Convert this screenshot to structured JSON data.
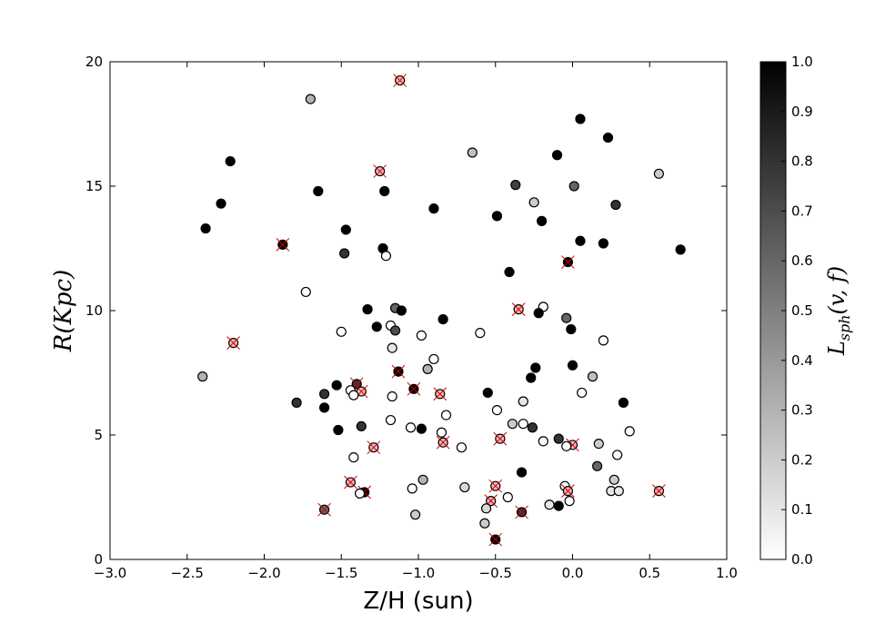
{
  "chart_data": {
    "type": "scatter",
    "xlabel": "Z/H (sun)",
    "ylabel": "R(Kpc)",
    "colorbar_label": "L_sph(v, f)",
    "xlim": [
      -3.0,
      1.0
    ],
    "ylim": [
      0,
      20
    ],
    "clim": [
      0.0,
      1.0
    ],
    "xticks": [
      "−3.0",
      "−2.5",
      "−2.0",
      "−1.5",
      "−1.0",
      "−0.5",
      "0.0",
      "0.5",
      "1.0"
    ],
    "xtick_values": [
      -3.0,
      -2.5,
      -2.0,
      -1.5,
      -1.0,
      -0.5,
      0.0,
      0.5,
      1.0
    ],
    "yticks": [
      "0",
      "5",
      "10",
      "15",
      "20"
    ],
    "ytick_values": [
      0,
      5,
      10,
      15,
      20
    ],
    "cbar_ticks": [
      "0.0",
      "0.1",
      "0.2",
      "0.3",
      "0.4",
      "0.5",
      "0.6",
      "0.7",
      "0.8",
      "0.9",
      "1.0"
    ],
    "cbar_tick_values": [
      0.0,
      0.1,
      0.2,
      0.3,
      0.4,
      0.5,
      0.6,
      0.7,
      0.8,
      0.9,
      1.0
    ],
    "colormap": "white-to-black",
    "marker_edge_color": "#000000",
    "cross_color": "#cc0000",
    "cross_fill_color": "#f2b8b8",
    "grid": false,
    "points": [
      {
        "x": -1.12,
        "y": 19.25,
        "c": 0.0,
        "crossed": true
      },
      {
        "x": -1.7,
        "y": 18.5,
        "c": 0.3
      },
      {
        "x": 0.05,
        "y": 17.7,
        "c": 1.0
      },
      {
        "x": 0.23,
        "y": 16.95,
        "c": 1.0
      },
      {
        "x": -0.65,
        "y": 16.35,
        "c": 0.25
      },
      {
        "x": -0.1,
        "y": 16.25,
        "c": 1.0
      },
      {
        "x": -2.22,
        "y": 16.0,
        "c": 1.0
      },
      {
        "x": -1.25,
        "y": 15.6,
        "c": 0.0,
        "crossed": true
      },
      {
        "x": 0.56,
        "y": 15.5,
        "c": 0.2
      },
      {
        "x": -0.37,
        "y": 15.05,
        "c": 0.75
      },
      {
        "x": 0.01,
        "y": 15.0,
        "c": 0.6
      },
      {
        "x": -1.65,
        "y": 14.8,
        "c": 1.0
      },
      {
        "x": -1.22,
        "y": 14.8,
        "c": 1.0
      },
      {
        "x": -0.25,
        "y": 14.35,
        "c": 0.2
      },
      {
        "x": -2.28,
        "y": 14.3,
        "c": 1.0
      },
      {
        "x": 0.28,
        "y": 14.25,
        "c": 0.8
      },
      {
        "x": -0.9,
        "y": 14.1,
        "c": 1.0
      },
      {
        "x": -0.49,
        "y": 13.8,
        "c": 1.0
      },
      {
        "x": -0.2,
        "y": 13.6,
        "c": 1.0
      },
      {
        "x": -2.38,
        "y": 13.3,
        "c": 1.0
      },
      {
        "x": -1.47,
        "y": 13.25,
        "c": 1.0
      },
      {
        "x": 0.05,
        "y": 12.8,
        "c": 1.0
      },
      {
        "x": 0.2,
        "y": 12.7,
        "c": 1.0
      },
      {
        "x": -1.88,
        "y": 12.65,
        "c": 1.0,
        "crossed": true
      },
      {
        "x": -1.23,
        "y": 12.5,
        "c": 1.0
      },
      {
        "x": 0.7,
        "y": 12.45,
        "c": 1.0
      },
      {
        "x": -1.48,
        "y": 12.3,
        "c": 0.8
      },
      {
        "x": -1.21,
        "y": 12.2,
        "c": 0.0
      },
      {
        "x": -0.03,
        "y": 11.95,
        "c": 1.0,
        "crossed": true
      },
      {
        "x": -0.41,
        "y": 11.55,
        "c": 1.0
      },
      {
        "x": -1.73,
        "y": 10.75,
        "c": 0.0
      },
      {
        "x": -0.19,
        "y": 10.15,
        "c": 0.0
      },
      {
        "x": -0.35,
        "y": 10.05,
        "c": 0.25,
        "crossed": true
      },
      {
        "x": -1.33,
        "y": 10.05,
        "c": 1.0
      },
      {
        "x": -1.15,
        "y": 10.1,
        "c": 0.6
      },
      {
        "x": -1.11,
        "y": 10.0,
        "c": 1.0
      },
      {
        "x": -0.22,
        "y": 9.9,
        "c": 1.0
      },
      {
        "x": -0.04,
        "y": 9.7,
        "c": 0.6
      },
      {
        "x": -0.84,
        "y": 9.65,
        "c": 1.0
      },
      {
        "x": -1.18,
        "y": 9.4,
        "c": 0.0
      },
      {
        "x": -1.27,
        "y": 9.35,
        "c": 1.0
      },
      {
        "x": -0.01,
        "y": 9.25,
        "c": 1.0
      },
      {
        "x": -1.15,
        "y": 9.2,
        "c": 0.7
      },
      {
        "x": -1.5,
        "y": 9.15,
        "c": 0.0
      },
      {
        "x": -0.6,
        "y": 9.1,
        "c": 0.0
      },
      {
        "x": -0.98,
        "y": 9.0,
        "c": 0.0
      },
      {
        "x": 0.2,
        "y": 8.8,
        "c": 0.0
      },
      {
        "x": -2.2,
        "y": 8.7,
        "c": 0.2,
        "crossed": true
      },
      {
        "x": -1.17,
        "y": 8.5,
        "c": 0.1
      },
      {
        "x": -0.9,
        "y": 8.05,
        "c": 0.0
      },
      {
        "x": 0.0,
        "y": 7.8,
        "c": 1.0
      },
      {
        "x": -0.24,
        "y": 7.7,
        "c": 1.0
      },
      {
        "x": -0.94,
        "y": 7.65,
        "c": 0.3
      },
      {
        "x": -1.13,
        "y": 7.55,
        "c": 1.0,
        "crossed": true
      },
      {
        "x": -2.4,
        "y": 7.35,
        "c": 0.3
      },
      {
        "x": 0.13,
        "y": 7.35,
        "c": 0.25
      },
      {
        "x": -0.27,
        "y": 7.3,
        "c": 1.0
      },
      {
        "x": -1.4,
        "y": 7.05,
        "c": 0.8,
        "crossed": true
      },
      {
        "x": -1.53,
        "y": 7.0,
        "c": 1.0
      },
      {
        "x": -1.03,
        "y": 6.85,
        "c": 1.0,
        "crossed": true
      },
      {
        "x": -1.44,
        "y": 6.8,
        "c": 0.0
      },
      {
        "x": -1.37,
        "y": 6.75,
        "c": 0.3,
        "crossed": true
      },
      {
        "x": -0.55,
        "y": 6.7,
        "c": 1.0
      },
      {
        "x": 0.06,
        "y": 6.7,
        "c": 0.0
      },
      {
        "x": -0.86,
        "y": 6.65,
        "c": 0.2,
        "crossed": true
      },
      {
        "x": -1.61,
        "y": 6.65,
        "c": 0.8
      },
      {
        "x": -1.42,
        "y": 6.6,
        "c": 0.0
      },
      {
        "x": -1.17,
        "y": 6.55,
        "c": 0.0
      },
      {
        "x": -0.32,
        "y": 6.35,
        "c": 0.1
      },
      {
        "x": -1.79,
        "y": 6.3,
        "c": 0.8
      },
      {
        "x": 0.33,
        "y": 6.3,
        "c": 1.0
      },
      {
        "x": -1.61,
        "y": 6.1,
        "c": 1.0
      },
      {
        "x": -0.49,
        "y": 6.0,
        "c": 0.0
      },
      {
        "x": -0.82,
        "y": 5.8,
        "c": 0.0
      },
      {
        "x": -1.18,
        "y": 5.6,
        "c": 0.0
      },
      {
        "x": -0.39,
        "y": 5.45,
        "c": 0.2
      },
      {
        "x": -0.32,
        "y": 5.45,
        "c": 0.0
      },
      {
        "x": -1.37,
        "y": 5.35,
        "c": 0.8
      },
      {
        "x": -0.26,
        "y": 5.3,
        "c": 0.8
      },
      {
        "x": -1.05,
        "y": 5.3,
        "c": 0.0
      },
      {
        "x": -0.98,
        "y": 5.25,
        "c": 1.0
      },
      {
        "x": -1.52,
        "y": 5.2,
        "c": 1.0
      },
      {
        "x": 0.37,
        "y": 5.15,
        "c": 0.0
      },
      {
        "x": -0.85,
        "y": 5.1,
        "c": 0.0
      },
      {
        "x": -0.09,
        "y": 4.85,
        "c": 0.8
      },
      {
        "x": -0.47,
        "y": 4.85,
        "c": 0.4,
        "crossed": true
      },
      {
        "x": -0.19,
        "y": 4.75,
        "c": 0.0
      },
      {
        "x": -0.84,
        "y": 4.7,
        "c": 0.1,
        "crossed": true
      },
      {
        "x": 0.17,
        "y": 4.65,
        "c": 0.2
      },
      {
        "x": 0.0,
        "y": 4.6,
        "c": 0.0,
        "crossed": true
      },
      {
        "x": -0.04,
        "y": 4.55,
        "c": 0.0
      },
      {
        "x": -0.72,
        "y": 4.5,
        "c": 0.0
      },
      {
        "x": -1.29,
        "y": 4.5,
        "c": 0.2,
        "crossed": true
      },
      {
        "x": 0.29,
        "y": 4.2,
        "c": 0.0
      },
      {
        "x": -1.42,
        "y": 4.1,
        "c": 0.0
      },
      {
        "x": 0.16,
        "y": 3.75,
        "c": 0.6
      },
      {
        "x": -0.33,
        "y": 3.5,
        "c": 1.0
      },
      {
        "x": -0.97,
        "y": 3.2,
        "c": 0.3
      },
      {
        "x": 0.27,
        "y": 3.2,
        "c": 0.2
      },
      {
        "x": -1.44,
        "y": 3.1,
        "c": 0.3,
        "crossed": true
      },
      {
        "x": -0.5,
        "y": 2.95,
        "c": 0.3,
        "crossed": true
      },
      {
        "x": -0.05,
        "y": 2.95,
        "c": 0.0
      },
      {
        "x": -0.7,
        "y": 2.9,
        "c": 0.15
      },
      {
        "x": -1.04,
        "y": 2.85,
        "c": 0.0
      },
      {
        "x": -0.03,
        "y": 2.75,
        "c": 0.3,
        "crossed": true
      },
      {
        "x": 0.25,
        "y": 2.75,
        "c": 0.1
      },
      {
        "x": 0.3,
        "y": 2.75,
        "c": 0.1
      },
      {
        "x": 0.56,
        "y": 2.75,
        "c": 0.1,
        "crossed": true
      },
      {
        "x": -1.35,
        "y": 2.7,
        "c": 1.0,
        "crossed": true
      },
      {
        "x": -1.38,
        "y": 2.65,
        "c": 0.0
      },
      {
        "x": -0.42,
        "y": 2.5,
        "c": 0.0
      },
      {
        "x": -0.53,
        "y": 2.35,
        "c": 0.3,
        "crossed": true
      },
      {
        "x": -0.02,
        "y": 2.35,
        "c": 0.0
      },
      {
        "x": -0.15,
        "y": 2.2,
        "c": 0.1
      },
      {
        "x": -0.09,
        "y": 2.15,
        "c": 1.0
      },
      {
        "x": -0.56,
        "y": 2.05,
        "c": 0.15
      },
      {
        "x": -1.61,
        "y": 2.0,
        "c": 0.6,
        "crossed": true
      },
      {
        "x": -0.33,
        "y": 1.9,
        "c": 0.8,
        "crossed": true
      },
      {
        "x": -1.02,
        "y": 1.8,
        "c": 0.2
      },
      {
        "x": -0.57,
        "y": 1.45,
        "c": 0.2
      },
      {
        "x": -0.5,
        "y": 0.8,
        "c": 1.0,
        "crossed": true
      }
    ]
  }
}
